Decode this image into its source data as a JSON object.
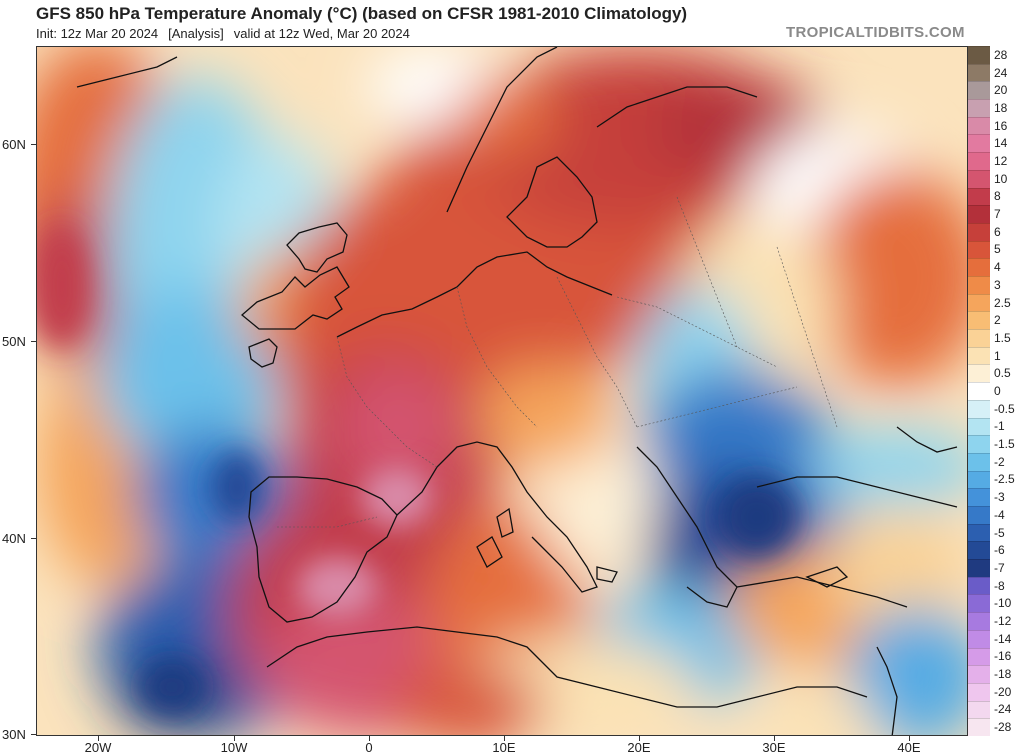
{
  "header": {
    "title": "GFS 850 hPa Temperature Anomaly (°C) (based on CFSR 1981-2010 Climatology)",
    "init": "Init: 12z Mar 20 2024",
    "analysis": "[Analysis]",
    "valid": "valid at 12z Wed, Mar 20 2024",
    "credit": "TROPICALTIDBITS.COM"
  },
  "map": {
    "lat_labels": [
      "60N",
      "50N",
      "40N",
      "30N"
    ],
    "lon_labels": [
      "20W",
      "10W",
      "0",
      "10E",
      "20E",
      "30E",
      "40E"
    ],
    "extent": {
      "lon_min": -25,
      "lon_max": 44,
      "lat_min": 30,
      "lat_max": 64
    }
  },
  "colorbar": {
    "labels": [
      "28",
      "24",
      "20",
      "18",
      "16",
      "14",
      "12",
      "10",
      "8",
      "7",
      "6",
      "5",
      "4",
      "3",
      "2.5",
      "2",
      "1.5",
      "1",
      "0.5",
      "0",
      "-0.5",
      "-1",
      "-1.5",
      "-2",
      "-2.5",
      "-3",
      "-4",
      "-5",
      "-6",
      "-7",
      "-8",
      "-10",
      "-12",
      "-14",
      "-16",
      "-18",
      "-20",
      "-24",
      "-28"
    ],
    "colors": [
      "#6b5a44",
      "#8d7a66",
      "#a9999a",
      "#c8a0b0",
      "#d98aa8",
      "#e27aa0",
      "#e0698c",
      "#d4556f",
      "#c23c4b",
      "#b3303a",
      "#c6403a",
      "#d8553a",
      "#e56e3c",
      "#ef8b48",
      "#f5a55c",
      "#f8bd74",
      "#fad296",
      "#fbe2b4",
      "#fdf0d6",
      "#ffffff",
      "#d6f0f7",
      "#b3e4f2",
      "#8ed4ee",
      "#6cc1ea",
      "#55abe4",
      "#4492da",
      "#3679c8",
      "#2c5fb0",
      "#234a96",
      "#1f3a80",
      "#6a5cc8",
      "#8a6ad6",
      "#a77ae0",
      "#c08be6",
      "#d59be8",
      "#e4b0ea",
      "#efc6ee",
      "#f3d8ef",
      "#f7e6f0"
    ]
  }
}
